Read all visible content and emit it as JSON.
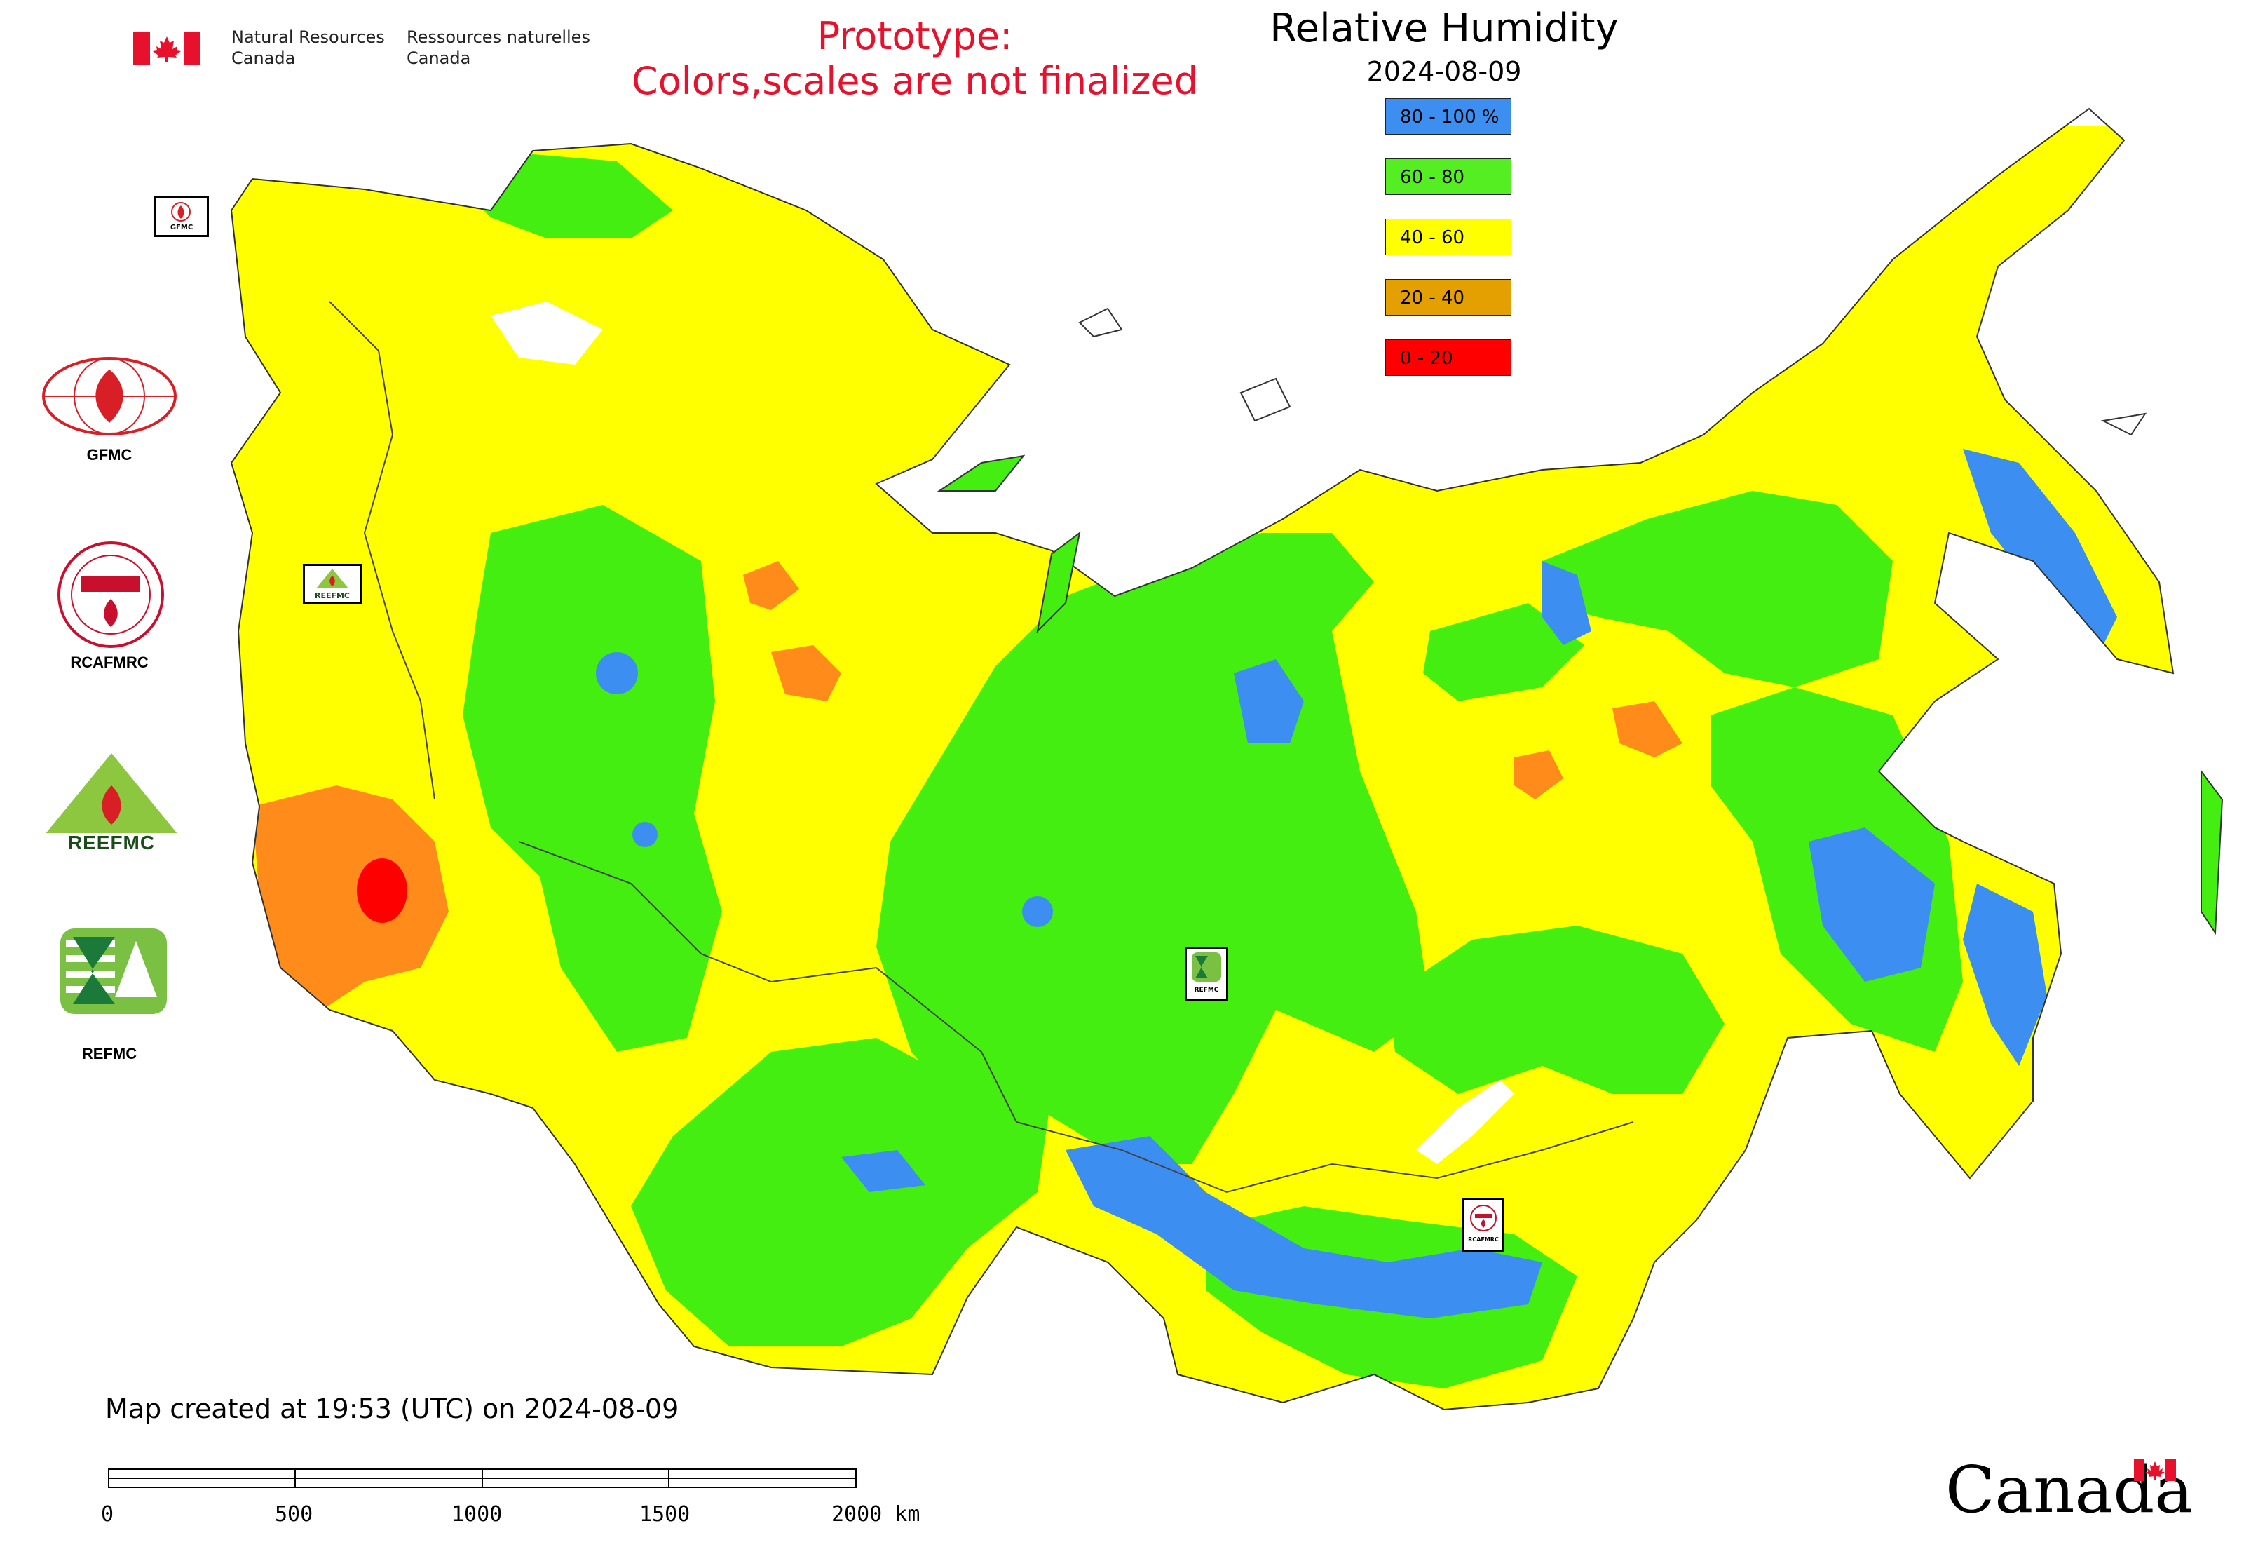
{
  "header": {
    "org_en_line1": "Natural Resources",
    "org_en_line2": "Canada",
    "org_fr_line1": "Ressources naturelles",
    "org_fr_line2": "Canada",
    "prototype_line1": "Prototype:",
    "prototype_line2": "Colors,scales are not finalized",
    "title": "Relative Humidity",
    "date": "2024-08-09"
  },
  "legend": [
    {
      "label": "80 - 100 %",
      "color": "#3c8ff0"
    },
    {
      "label": "60 - 80",
      "color": "#55ee22"
    },
    {
      "label": "40 - 60",
      "color": "#ffff00"
    },
    {
      "label": "20 - 40",
      "color": "#e4a000"
    },
    {
      "label": "0 - 20",
      "color": "#ff0000"
    }
  ],
  "colors": {
    "blue": "#3c8ff0",
    "green": "#44ee11",
    "yellow": "#ffff00",
    "orange": "#ff8c1a",
    "red": "#ff0000",
    "alert_red": "#e8112d"
  },
  "partners": {
    "gfmc": "GFMC",
    "rcafmrc": "RCAFMRC",
    "reefmc_logo_text": "REEFMC",
    "refmc": "REFMC",
    "marker_gfmc": "GFMC",
    "marker_refmc": "REFMC",
    "marker_rcafmrc": "RCAFMRC"
  },
  "footer": {
    "created": "Map created at 19:53 (UTC) on 2024-08-09",
    "scale_ticks": [
      "0",
      "500",
      "1000",
      "1500",
      "2000 km"
    ],
    "wordmark": "Canada"
  }
}
